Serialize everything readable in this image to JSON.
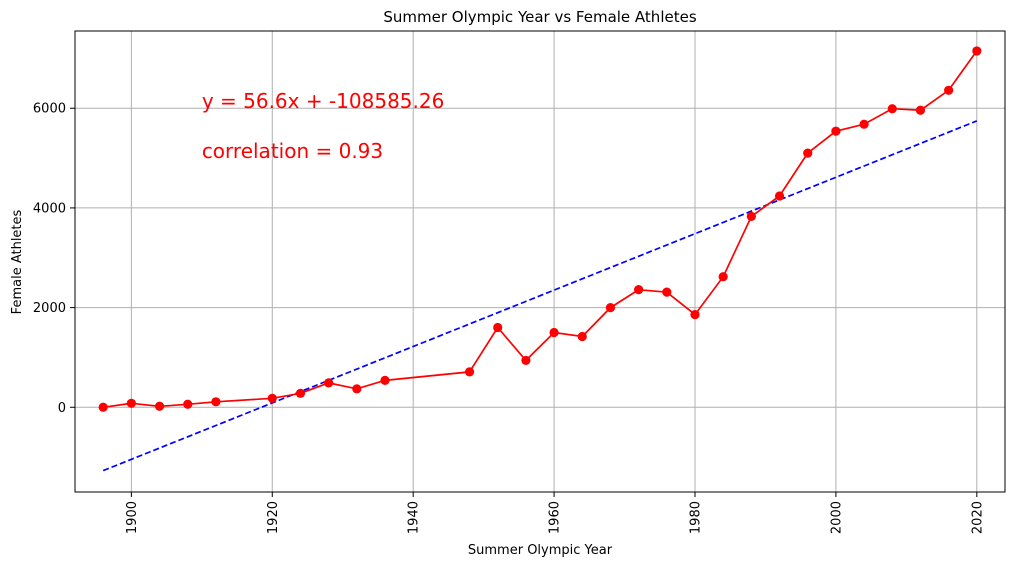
{
  "chart_data": {
    "type": "line",
    "title": "Summer Olympic Year vs Female Athletes",
    "xlabel": "Summer Olympic Year",
    "ylabel": "Female Athletes",
    "xlim": [
      1892,
      2024
    ],
    "ylim": [
      -1700,
      7550
    ],
    "grid": true,
    "x_ticks": [
      1900,
      1920,
      1940,
      1960,
      1980,
      2000,
      2020
    ],
    "y_ticks": [
      0,
      2000,
      4000,
      6000
    ],
    "series": [
      {
        "color": "#ff0000",
        "style": "solid-with-markers",
        "x": [
          1896,
          1900,
          1904,
          1908,
          1912,
          1920,
          1924,
          1928,
          1932,
          1936,
          1948,
          1952,
          1956,
          1960,
          1964,
          1968,
          1972,
          1976,
          1980,
          1984,
          1988,
          1992,
          1996,
          2000,
          2004,
          2008,
          2012,
          2016,
          2020
        ],
        "y": [
          0,
          80,
          20,
          60,
          110,
          180,
          280,
          490,
          370,
          540,
          710,
          1600,
          940,
          1500,
          1420,
          2000,
          2360,
          2310,
          1860,
          2620,
          3830,
          4240,
          5100,
          5540,
          5680,
          5990,
          5960,
          6360,
          7150
        ]
      },
      {
        "color": "#0000ff",
        "style": "dashed",
        "x": [
          1896,
          2020
        ],
        "y": [
          -1271,
          5747
        ]
      }
    ],
    "annotations": [
      {
        "text": "y = 56.6x + -108585.26",
        "x": 1910,
        "y": 6000,
        "color": "#ff0000"
      },
      {
        "text": "correlation = 0.93",
        "x": 1910,
        "y": 5000,
        "color": "#ff0000"
      }
    ]
  }
}
